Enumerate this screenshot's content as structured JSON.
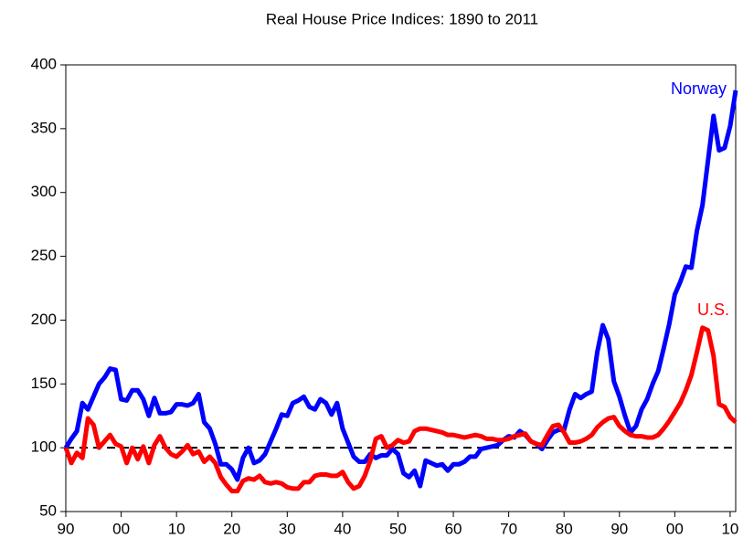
{
  "chart_data": {
    "type": "line",
    "title": "Real House Price Indices: 1890 to 2011",
    "x": [
      1890,
      1891,
      1892,
      1893,
      1894,
      1895,
      1896,
      1897,
      1898,
      1899,
      1900,
      1901,
      1902,
      1903,
      1904,
      1905,
      1906,
      1907,
      1908,
      1909,
      1910,
      1911,
      1912,
      1913,
      1914,
      1915,
      1916,
      1917,
      1918,
      1919,
      1920,
      1921,
      1922,
      1923,
      1924,
      1925,
      1926,
      1927,
      1928,
      1929,
      1930,
      1931,
      1932,
      1933,
      1934,
      1935,
      1936,
      1937,
      1938,
      1939,
      1940,
      1941,
      1942,
      1943,
      1944,
      1945,
      1946,
      1947,
      1948,
      1949,
      1950,
      1951,
      1952,
      1953,
      1954,
      1955,
      1956,
      1957,
      1958,
      1959,
      1960,
      1961,
      1962,
      1963,
      1964,
      1965,
      1966,
      1967,
      1968,
      1969,
      1970,
      1971,
      1972,
      1973,
      1974,
      1975,
      1976,
      1977,
      1978,
      1979,
      1980,
      1981,
      1982,
      1983,
      1984,
      1985,
      1986,
      1987,
      1988,
      1989,
      1990,
      1991,
      1992,
      1993,
      1994,
      1995,
      1996,
      1997,
      1998,
      1999,
      2000,
      2001,
      2002,
      2003,
      2004,
      2005,
      2006,
      2007,
      2008,
      2009,
      2010,
      2011
    ],
    "series": [
      {
        "name": "Norway",
        "color": "#0000ff",
        "values": [
          100,
          107,
          113,
          135,
          130,
          140,
          150,
          155,
          162,
          161,
          138,
          137,
          145,
          145,
          138,
          125,
          139,
          127,
          127,
          128,
          134,
          134,
          133,
          135,
          142,
          120,
          115,
          103,
          87,
          87,
          83,
          75,
          92,
          100,
          88,
          90,
          95,
          105,
          115,
          126,
          125,
          135,
          137,
          140,
          132,
          130,
          138,
          135,
          126,
          135,
          115,
          104,
          93,
          89,
          89,
          95,
          92,
          94,
          94,
          99,
          95,
          80,
          77,
          82,
          70,
          90,
          88,
          86,
          87,
          82,
          87,
          87,
          89,
          93,
          93,
          99,
          100,
          101,
          102,
          106,
          109,
          108,
          113,
          110,
          105,
          103,
          99,
          106,
          112,
          114,
          114,
          130,
          142,
          139,
          142,
          144,
          175,
          196,
          185,
          152,
          140,
          125,
          112,
          117,
          130,
          138,
          150,
          160,
          178,
          197,
          220,
          230,
          242,
          241,
          270,
          290,
          325,
          360,
          333,
          335,
          352,
          380
        ]
      },
      {
        "name": "U.S.",
        "color": "#ff0000",
        "values": [
          100,
          88,
          96,
          92,
          123,
          118,
          100,
          105,
          110,
          103,
          101,
          88,
          100,
          91,
          101,
          88,
          102,
          109,
          100,
          95,
          93,
          97,
          102,
          95,
          97,
          89,
          93,
          88,
          77,
          71,
          66,
          66,
          74,
          76,
          75,
          78,
          73,
          72,
          73,
          72,
          69,
          68,
          68,
          73,
          73,
          78,
          79,
          79,
          78,
          78,
          81,
          73,
          68,
          70,
          78,
          90,
          107,
          109,
          100,
          102,
          106,
          104,
          105,
          113,
          115,
          115,
          114,
          113,
          112,
          110,
          110,
          109,
          108,
          109,
          110,
          109,
          107,
          107,
          106,
          106,
          107,
          109,
          110,
          111,
          105,
          103,
          102,
          110,
          117,
          118,
          112,
          104,
          104,
          105,
          107,
          110,
          116,
          120,
          123,
          124,
          117,
          113,
          110,
          109,
          109,
          108,
          108,
          110,
          115,
          121,
          128,
          135,
          145,
          157,
          175,
          194,
          192,
          172,
          134,
          132,
          124,
          120
        ]
      }
    ],
    "reference_line": 100,
    "xlim": [
      1890,
      2011
    ],
    "xticks": [
      {
        "value": 1890,
        "label": "90"
      },
      {
        "value": 1900,
        "label": "00"
      },
      {
        "value": 1910,
        "label": "10"
      },
      {
        "value": 1920,
        "label": "20"
      },
      {
        "value": 1930,
        "label": "30"
      },
      {
        "value": 1940,
        "label": "40"
      },
      {
        "value": 1950,
        "label": "50"
      },
      {
        "value": 1960,
        "label": "60"
      },
      {
        "value": 1970,
        "label": "70"
      },
      {
        "value": 1980,
        "label": "80"
      },
      {
        "value": 1990,
        "label": "90"
      },
      {
        "value": 2000,
        "label": "00"
      },
      {
        "value": 2010,
        "label": "10"
      }
    ],
    "ylim": [
      50,
      400
    ],
    "yticks": [
      50,
      100,
      150,
      200,
      250,
      300,
      350,
      400
    ],
    "grid": false
  }
}
